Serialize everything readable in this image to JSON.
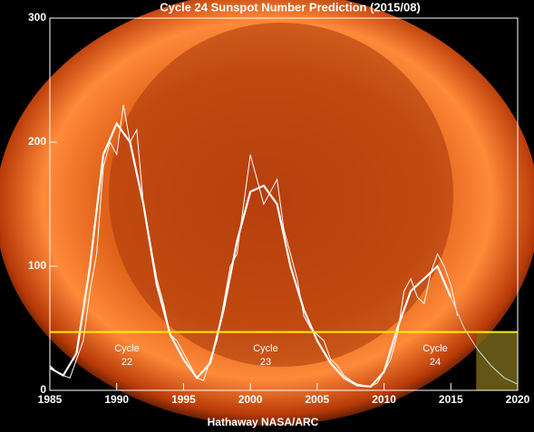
{
  "chart_data": {
    "type": "line",
    "title": "Cycle 24 Sunspot Number Prediction (2015/08)",
    "credit": "Hathaway  NASA/ARC",
    "annotations": [
      [
        "Cycle",
        "22"
      ],
      [
        "Cycle",
        "23"
      ],
      [
        "Cycle",
        "24"
      ]
    ],
    "xlim": [
      1985,
      2020
    ],
    "xticks": [
      1985,
      1990,
      1995,
      2000,
      2005,
      2010,
      2015,
      2020
    ],
    "ylim": [
      0,
      300
    ],
    "yticks": [
      0,
      100,
      200,
      300
    ],
    "reference_line": {
      "value": 47,
      "color": "#ffee00"
    },
    "shaded_region": {
      "x": [
        2016.9,
        2020
      ],
      "y": [
        0,
        47
      ],
      "color": "#7a6a1a"
    },
    "series": [
      {
        "color": "#ffffff",
        "width": 1,
        "x": [
          1985,
          1985.5,
          1986,
          1986.5,
          1987,
          1987.5,
          1988,
          1988.5,
          1989,
          1989.5,
          1990,
          1990.5,
          1991,
          1991.5,
          1992,
          1992.5,
          1993,
          1993.5,
          1994,
          1994.5,
          1995,
          1995.5,
          1996,
          1996.5,
          1997,
          1997.5,
          1998,
          1998.5,
          1999,
          1999.5,
          2000,
          2000.5,
          2001,
          2001.5,
          2002,
          2002.5,
          2003,
          2003.5,
          2004,
          2004.5,
          2005,
          2005.5,
          2006,
          2006.5,
          2007,
          2007.5,
          2008,
          2008.5,
          2009,
          2009.5,
          2010,
          2010.5,
          2011,
          2011.5,
          2012,
          2012.5,
          2013,
          2013.5,
          2014,
          2014.5,
          2015,
          2015.5
        ],
        "values": [
          20,
          15,
          12,
          10,
          25,
          40,
          80,
          110,
          180,
          200,
          190,
          230,
          200,
          210,
          150,
          120,
          90,
          70,
          45,
          40,
          30,
          20,
          10,
          8,
          25,
          40,
          70,
          100,
          110,
          150,
          190,
          170,
          150,
          160,
          170,
          130,
          110,
          90,
          60,
          50,
          45,
          40,
          25,
          20,
          12,
          8,
          5,
          4,
          3,
          6,
          15,
          25,
          45,
          80,
          90,
          75,
          70,
          95,
          110,
          100,
          85,
          60
        ]
      },
      {
        "color": "#ffffff",
        "width": 2.2,
        "x": [
          1985,
          1986,
          1987,
          1988,
          1989,
          1990,
          1991,
          1992,
          1993,
          1994,
          1995,
          1996,
          1997,
          1998,
          1999,
          2000,
          2001,
          2002,
          2003,
          2004,
          2005,
          2006,
          2007,
          2008,
          2009,
          2010,
          2011,
          2012,
          2013,
          2014,
          2015
        ],
        "values": [
          18,
          12,
          30,
          100,
          190,
          215,
          200,
          150,
          85,
          45,
          25,
          10,
          22,
          65,
          120,
          160,
          165,
          150,
          100,
          65,
          40,
          22,
          10,
          4,
          3,
          15,
          50,
          80,
          90,
          100,
          75
        ]
      },
      {
        "color": "#d8d8d8",
        "width": 1,
        "x": [
          2015,
          2016,
          2017,
          2018,
          2019,
          2020
        ],
        "values": [
          75,
          50,
          33,
          20,
          10,
          5
        ]
      }
    ]
  }
}
